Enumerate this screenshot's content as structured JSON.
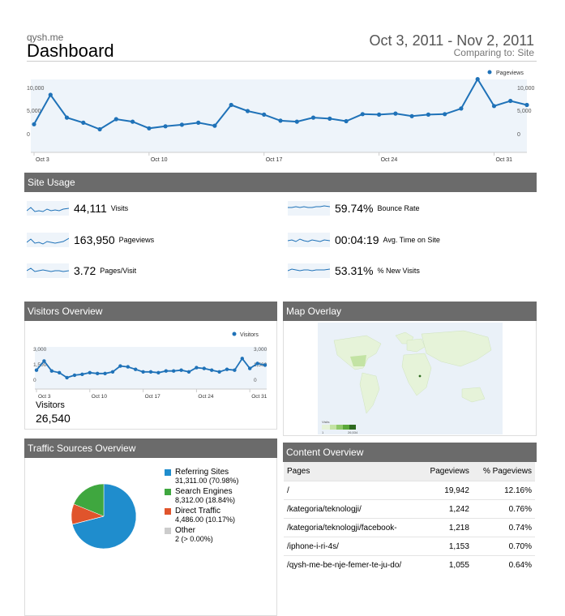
{
  "header": {
    "site": "qysh.me",
    "title": "Dashboard",
    "date_range": "Oct 3, 2011 - Nov 2, 2011",
    "comparing": "Comparing to: Site"
  },
  "main_chart": {
    "legend": "Pageviews",
    "y_ticks_left": [
      "10,000",
      "5,000",
      "0"
    ],
    "y_ticks_right": [
      "10,000",
      "5,000",
      "0"
    ],
    "x_ticks": [
      "Oct 3",
      "Oct 10",
      "Oct 17",
      "Oct 24",
      "Oct 31"
    ]
  },
  "site_usage": {
    "title": "Site Usage",
    "metrics": [
      {
        "value": "44,111",
        "label": "Visits"
      },
      {
        "value": "163,950",
        "label": "Pageviews"
      },
      {
        "value": "3.72",
        "label": "Pages/Visit"
      },
      {
        "value": "59.74%",
        "label": "Bounce Rate"
      },
      {
        "value": "00:04:19",
        "label": "Avg. Time on Site"
      },
      {
        "value": "53.31%",
        "label": "% New Visits"
      }
    ]
  },
  "visitors_overview": {
    "title": "Visitors Overview",
    "legend": "Visitors",
    "y_ticks_left": [
      "3,000",
      "1,500",
      "0"
    ],
    "y_ticks_right": [
      "3,000",
      "1,500",
      "0"
    ],
    "x_ticks": [
      "Oct 3",
      "Oct 10",
      "Oct 17",
      "Oct 24",
      "Oct 31"
    ],
    "total_label": "Visitors",
    "total_value": "26,540"
  },
  "map_overlay": {
    "title": "Map Overlay",
    "scale_min": "1",
    "scale_max": "26,534",
    "scale_label": "Visits"
  },
  "traffic_sources": {
    "title": "Traffic Sources Overview",
    "items": [
      {
        "name": "Referring Sites",
        "value": "31,311.00 (70.98%)",
        "color": "#1f8dcd"
      },
      {
        "name": "Search Engines",
        "value": "8,312.00 (18.84%)",
        "color": "#3fa73f"
      },
      {
        "name": "Direct Traffic",
        "value": "4,486.00 (10.17%)",
        "color": "#e0542c"
      },
      {
        "name": "Other",
        "value": "2 (> 0.00%)",
        "color": "#cccccc"
      }
    ]
  },
  "content_overview": {
    "title": "Content Overview",
    "headers": [
      "Pages",
      "Pageviews",
      "% Pageviews"
    ],
    "rows": [
      [
        "/",
        "19,942",
        "12.16%"
      ],
      [
        "/kategoria/teknologji/",
        "1,242",
        "0.76%"
      ],
      [
        "/kategoria/teknologji/facebook-",
        "1,218",
        "0.74%"
      ],
      [
        "/iphone-i-ri-4s/",
        "1,153",
        "0.70%"
      ],
      [
        "/qysh-me-be-nje-femer-te-ju-do/",
        "1,055",
        "0.64%"
      ]
    ]
  },
  "chart_data": [
    {
      "type": "line",
      "legend": "Pageviews",
      "x": [
        "Oct 3",
        "Oct 4",
        "Oct 5",
        "Oct 6",
        "Oct 7",
        "Oct 8",
        "Oct 9",
        "Oct 10",
        "Oct 11",
        "Oct 12",
        "Oct 13",
        "Oct 14",
        "Oct 15",
        "Oct 16",
        "Oct 17",
        "Oct 18",
        "Oct 19",
        "Oct 20",
        "Oct 21",
        "Oct 22",
        "Oct 23",
        "Oct 24",
        "Oct 25",
        "Oct 26",
        "Oct 27",
        "Oct 28",
        "Oct 29",
        "Oct 30",
        "Oct 31",
        "Nov 1",
        "Nov 2"
      ],
      "series": [
        {
          "values": [
            2200,
            8000,
            3500,
            2500,
            1200,
            3200,
            2700,
            1400,
            1800,
            2100,
            2500,
            1900,
            6000,
            4800,
            4100,
            2900,
            2700,
            3500,
            3300,
            2800,
            4200,
            4100,
            4300,
            3800,
            4100,
            4200,
            5300,
            11100,
            5800,
            6800,
            6000
          ]
        }
      ],
      "ylim": [
        0,
        12000
      ],
      "yticks": [
        0,
        5000,
        10000
      ],
      "color": "#1f72b8"
    },
    {
      "type": "line",
      "legend": "Visitors",
      "x": [
        "Oct 3",
        "Oct 4",
        "Oct 5",
        "Oct 6",
        "Oct 7",
        "Oct 8",
        "Oct 9",
        "Oct 10",
        "Oct 11",
        "Oct 12",
        "Oct 13",
        "Oct 14",
        "Oct 15",
        "Oct 16",
        "Oct 17",
        "Oct 18",
        "Oct 19",
        "Oct 20",
        "Oct 21",
        "Oct 22",
        "Oct 23",
        "Oct 24",
        "Oct 25",
        "Oct 26",
        "Oct 27",
        "Oct 28",
        "Oct 29",
        "Oct 30",
        "Oct 31",
        "Nov 1",
        "Nov 2"
      ],
      "series": [
        {
          "values": [
            800,
            1900,
            700,
            500,
            -100,
            200,
            300,
            500,
            400,
            400,
            600,
            1300,
            1200,
            900,
            600,
            600,
            500,
            700,
            700,
            800,
            600,
            1100,
            1000,
            800,
            600,
            900,
            800,
            2200,
            1000,
            1600,
            1400
          ]
        }
      ],
      "ylim": [
        -300,
        3300
      ],
      "yticks": [
        0,
        1500,
        3000
      ],
      "color": "#1f72b8"
    },
    {
      "type": "pie",
      "categories": [
        "Referring Sites",
        "Search Engines",
        "Direct Traffic",
        "Other"
      ],
      "values": [
        70.98,
        18.84,
        10.17,
        0.01
      ],
      "colors": [
        "#1f8dcd",
        "#3fa73f",
        "#e0542c",
        "#cccccc"
      ]
    }
  ]
}
